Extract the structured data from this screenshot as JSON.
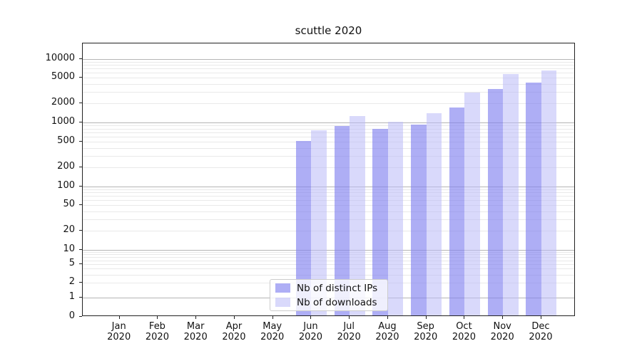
{
  "chart_data": {
    "type": "bar",
    "title": "scuttle 2020",
    "categories": [
      "Jan",
      "Feb",
      "Mar",
      "Apr",
      "May",
      "Jun",
      "Jul",
      "Aug",
      "Sep",
      "Oct",
      "Nov",
      "Dec"
    ],
    "category_year": "2020",
    "series": [
      {
        "name": "Nb of distinct IPs",
        "color": "rgba(130,130,240,0.65)",
        "values": [
          0,
          0,
          0,
          0,
          0,
          510,
          880,
          795,
          930,
          1730,
          3350,
          4200
        ]
      },
      {
        "name": "Nb of downloads",
        "color": "rgba(185,185,247,0.55)",
        "values": [
          0,
          0,
          0,
          0,
          0,
          760,
          1260,
          1020,
          1390,
          2950,
          5800,
          6600
        ]
      }
    ],
    "yticks": [
      10000,
      5000,
      2000,
      1000,
      500,
      200,
      100,
      50,
      20,
      10,
      5,
      2,
      1,
      0
    ],
    "yscale": "symlog",
    "ylim": [
      0,
      17000
    ],
    "grid": true,
    "legend_position": "lower center",
    "colors": {
      "major_grid": "#b5b5b5",
      "minor_grid": "#e9e9e9",
      "axis_border": "#222222",
      "text": "#111111"
    }
  }
}
